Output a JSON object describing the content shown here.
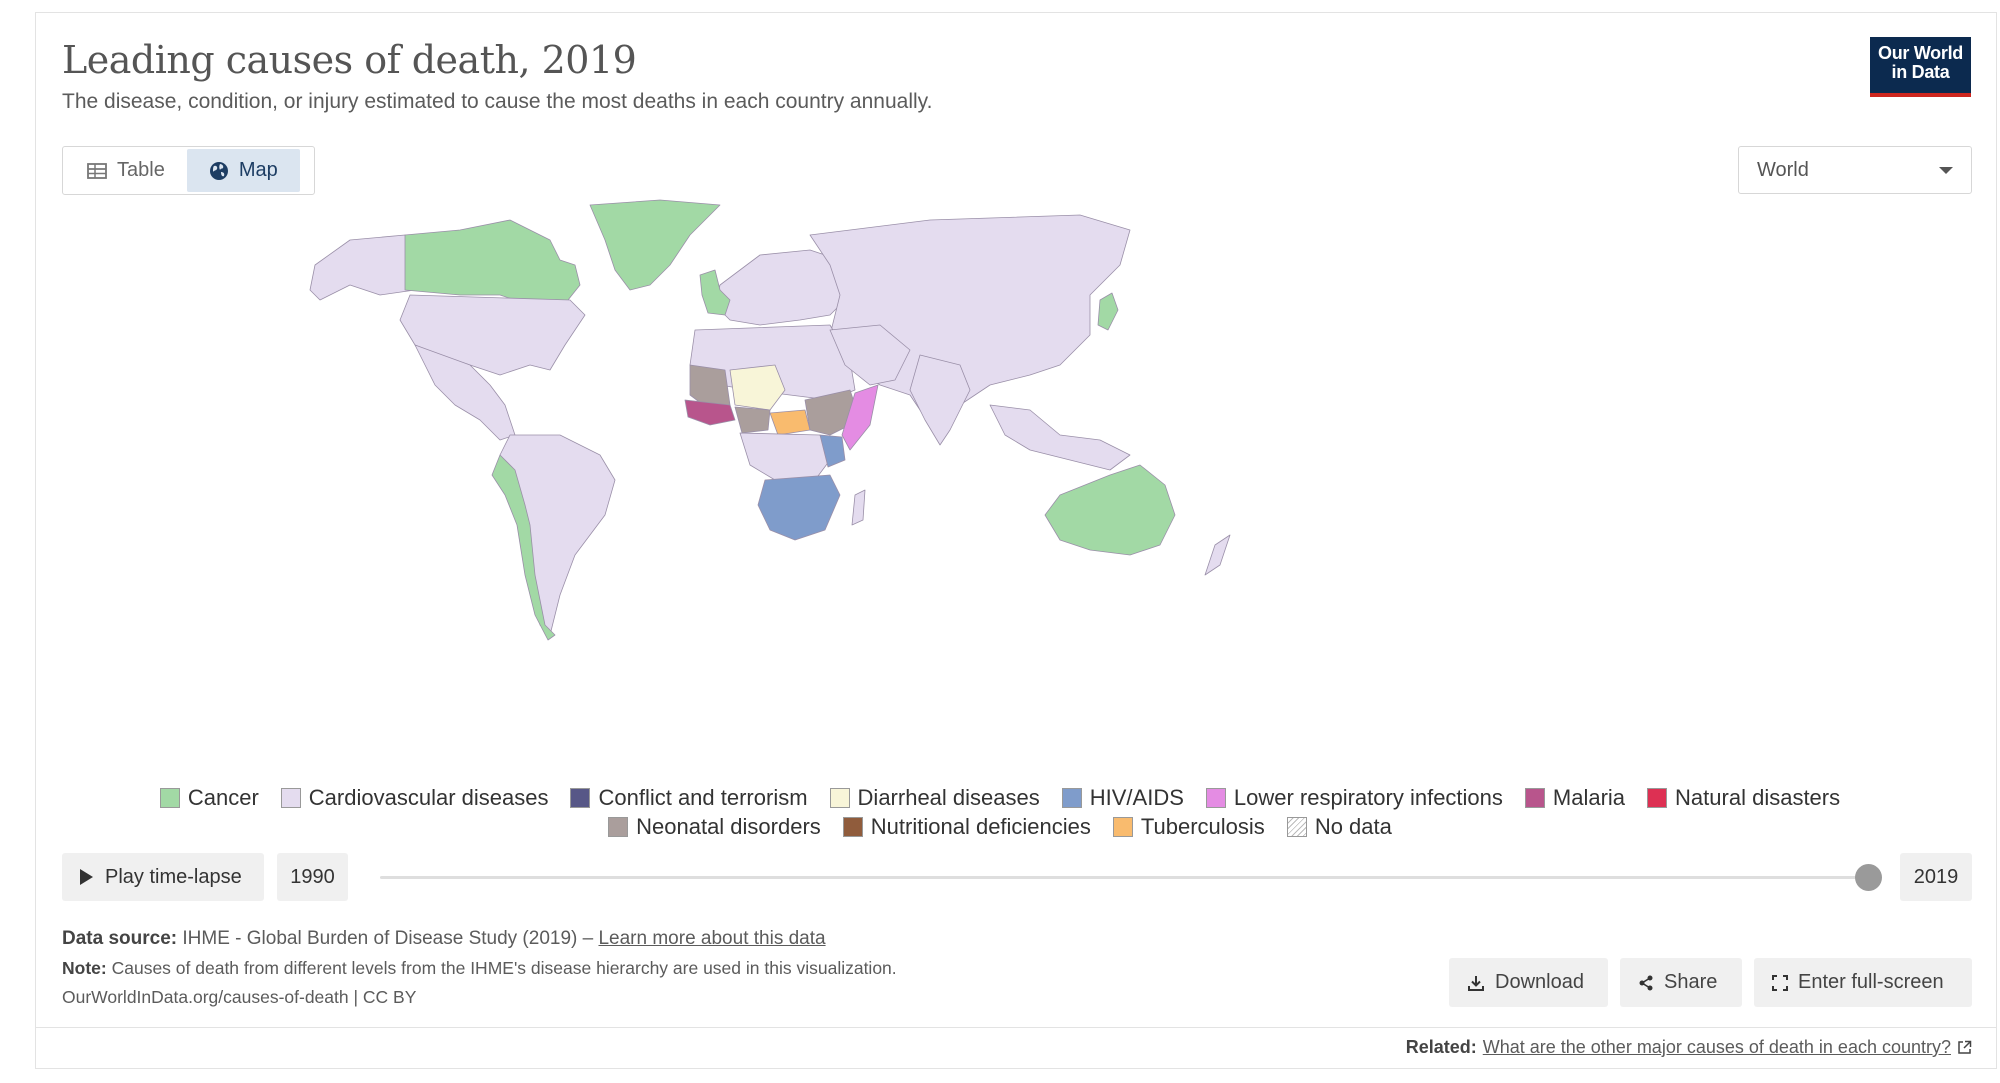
{
  "header": {
    "title": "Leading causes of death, 2019",
    "subtitle": "The disease, condition, or injury estimated to cause the most deaths in each country annually.",
    "logo_line1": "Our World",
    "logo_line2": "in Data"
  },
  "tabs": [
    {
      "label": "Table",
      "icon": "table-icon",
      "active": false
    },
    {
      "label": "Map",
      "icon": "globe-icon",
      "active": true
    }
  ],
  "region_select": {
    "value": "World"
  },
  "legend": {
    "row1": [
      {
        "label": "Cancer",
        "color": "#a2d9a5"
      },
      {
        "label": "Cardiovascular diseases",
        "color": "#e4dcef"
      },
      {
        "label": "Conflict and terrorism",
        "color": "#575787"
      },
      {
        "label": "Diarrheal diseases",
        "color": "#f8f5d8"
      },
      {
        "label": "HIV/AIDS",
        "color": "#7f9ccb"
      },
      {
        "label": "Lower respiratory infections",
        "color": "#e48ce3"
      },
      {
        "label": "Malaria",
        "color": "#b8558c"
      },
      {
        "label": "Natural disasters",
        "color": "#dd3053"
      }
    ],
    "row2": [
      {
        "label": "Neonatal disorders",
        "color": "#aa9e9c"
      },
      {
        "label": "Nutritional deficiencies",
        "color": "#905c3c"
      },
      {
        "label": "Tuberculosis",
        "color": "#f9bb6e"
      },
      {
        "label": "No data",
        "color": "nodata"
      }
    ]
  },
  "timeline": {
    "play_label": "Play time-lapse",
    "start_year": "1990",
    "end_year": "2019",
    "position": 1.0
  },
  "footer": {
    "source_label": "Data source:",
    "source_text": "IHME - Global Burden of Disease Study (2019) –",
    "source_link": "Learn more about this data",
    "note_label": "Note:",
    "note_text": "Causes of death from different levels from the IHME's disease hierarchy are used in this visualization.",
    "url_text": "OurWorldInData.org/causes-of-death | CC BY"
  },
  "actions": {
    "download": "Download",
    "share": "Share",
    "fullscreen": "Enter full-screen"
  },
  "related": {
    "label": "Related:",
    "link": "What are the other major causes of death in each country?"
  }
}
